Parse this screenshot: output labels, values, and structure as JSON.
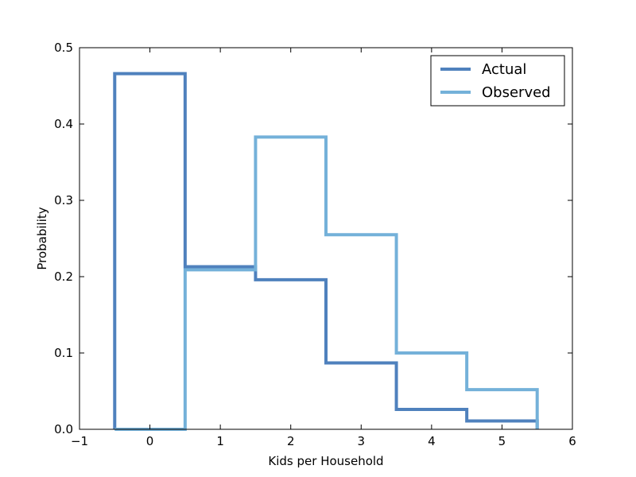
{
  "chart_data": {
    "type": "line",
    "step": true,
    "xlabel": "Kids per Household",
    "ylabel": "Probability",
    "xlim": [
      -1,
      6
    ],
    "ylim": [
      0,
      0.5
    ],
    "xticks": [
      "−1",
      "0",
      "1",
      "2",
      "3",
      "4",
      "5",
      "6"
    ],
    "yticks": [
      "0.0",
      "0.1",
      "0.2",
      "0.3",
      "0.4",
      "0.5"
    ],
    "grid": false,
    "legend_position": "top-right",
    "categories": [
      0,
      1,
      2,
      3,
      4,
      5
    ],
    "series": [
      {
        "name": "Actual",
        "color": "#4f81bd",
        "values": [
          0.466,
          0.213,
          0.196,
          0.087,
          0.026,
          0.011
        ]
      },
      {
        "name": "Observed",
        "color": "#74b1d9",
        "values": [
          0.0,
          0.209,
          0.383,
          0.255,
          0.1,
          0.052
        ]
      }
    ]
  }
}
